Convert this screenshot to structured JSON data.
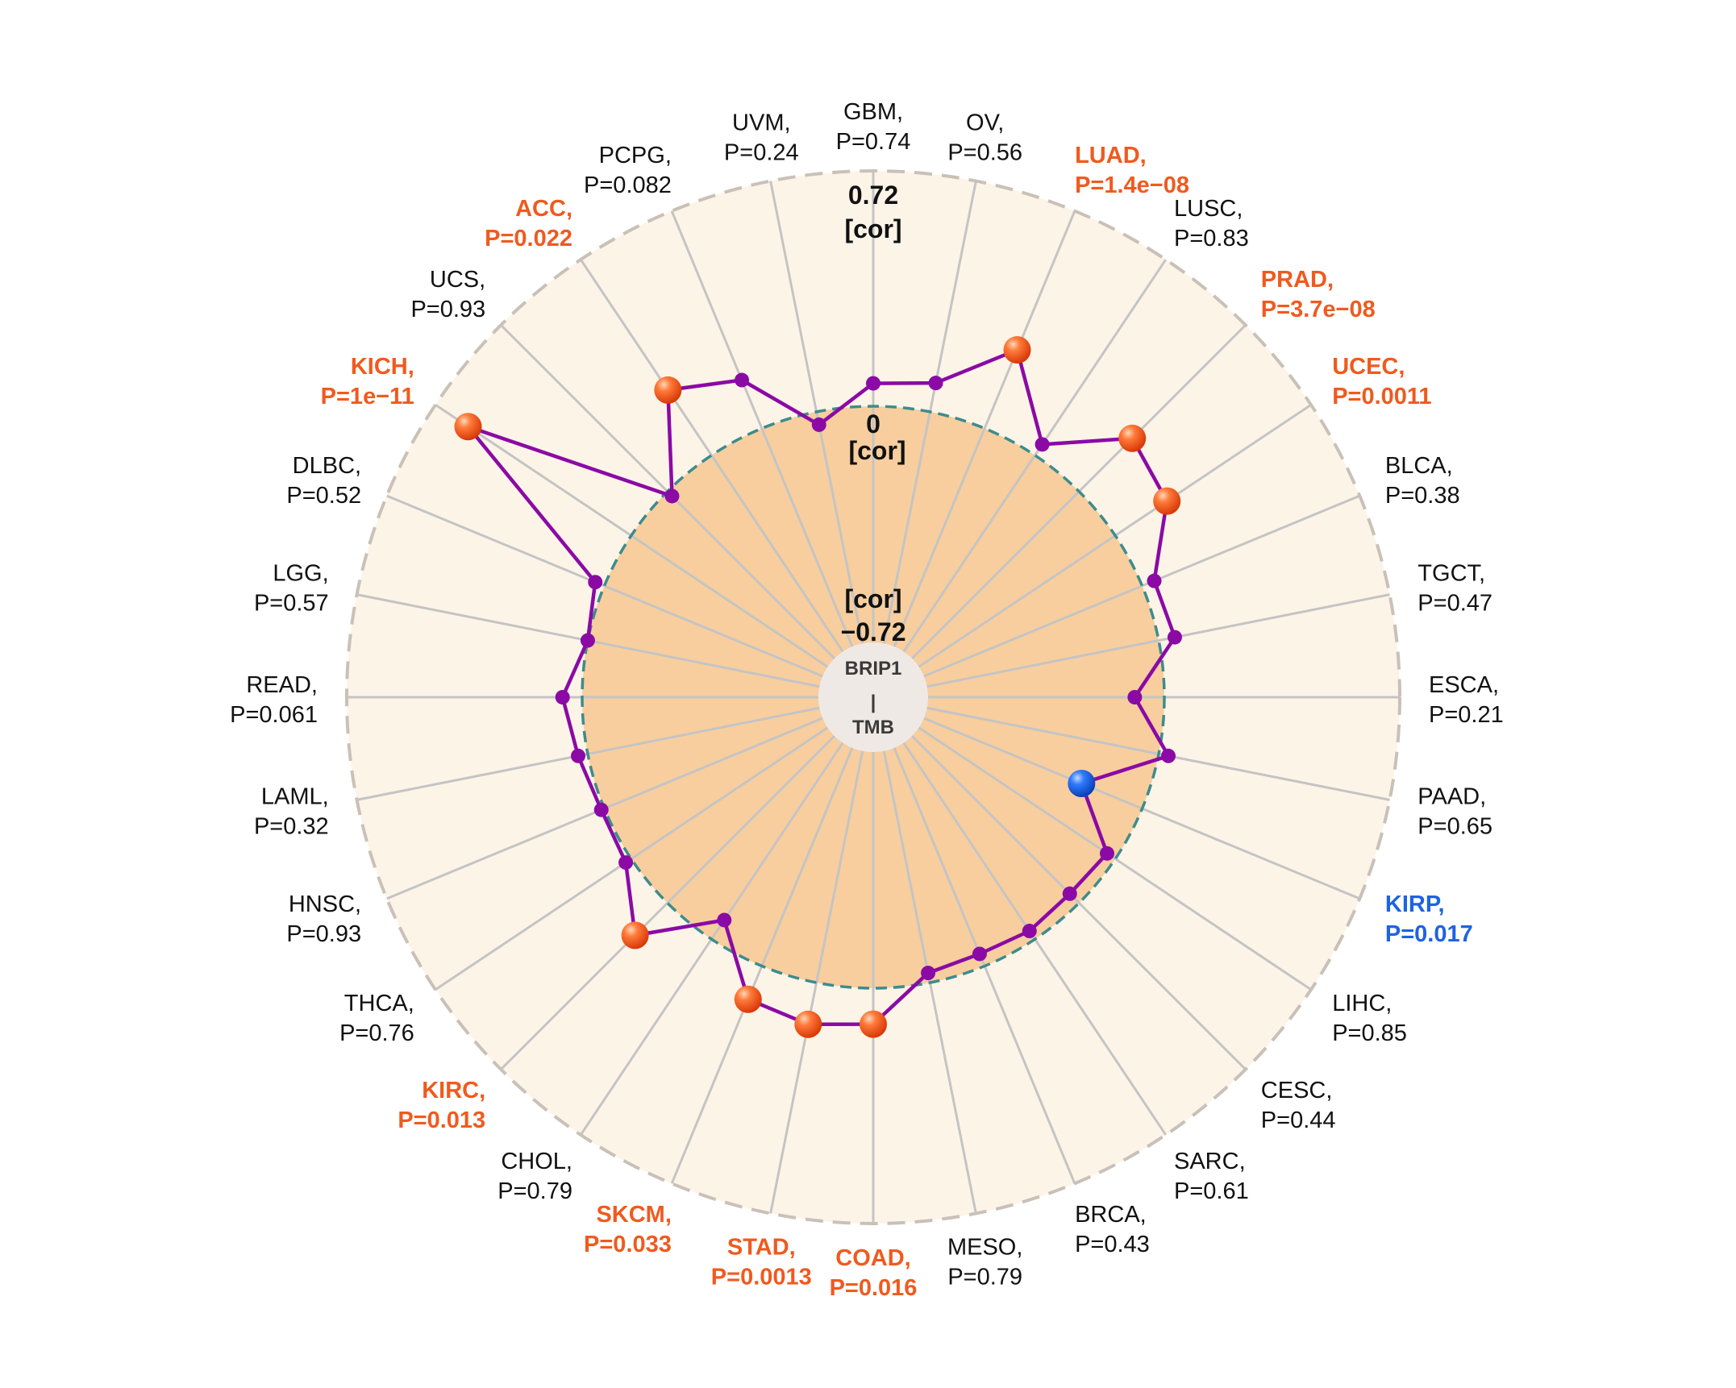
{
  "chart_data": {
    "type": "radar",
    "center": {
      "top": "BRIP1",
      "separator": "|",
      "bottom": "TMB"
    },
    "scale": {
      "min": -0.72,
      "zero": 0,
      "max": 0.72,
      "max_label_value": "0.72",
      "max_label_unit": "[cor]",
      "zero_label_value": "0",
      "zero_label_unit": "[cor]",
      "min_label_value": "−0.72",
      "min_label_unit": "[cor]"
    },
    "colors": {
      "positive_significant": "#F05A1E",
      "negative_significant": "#1E63E0",
      "not_significant": "#111111",
      "line": "#8B0AA5",
      "point": "#8B0AA5",
      "inner_fill": "#F8CE9E",
      "outer_fill": "#FDF4E8",
      "spoke": "#C4C4C4",
      "outer_ring": "#C9C1B8",
      "zero_ring": "#3D8C8C",
      "center_fill": "#EFE9E6"
    },
    "categories": [
      {
        "name": "GBM,",
        "p": "P=0.74",
        "cor": 0.07,
        "sig": "none"
      },
      {
        "name": "OV,",
        "p": "P=0.56",
        "cor": 0.09,
        "sig": "none"
      },
      {
        "name": "LUAD,",
        "p": "P=1.4e−08",
        "cor": 0.26,
        "sig": "pos"
      },
      {
        "name": "LUSC,",
        "p": "P=0.83",
        "cor": 0.04,
        "sig": "none"
      },
      {
        "name": "PRAD,",
        "p": "P=3.7e−08",
        "cor": 0.23,
        "sig": "pos"
      },
      {
        "name": "UCEC,",
        "p": "P=0.0011",
        "cor": 0.19,
        "sig": "pos"
      },
      {
        "name": "BLCA,",
        "p": "P=0.38",
        "cor": 0.04,
        "sig": "none"
      },
      {
        "name": "TGCT,",
        "p": "P=0.47",
        "cor": 0.05,
        "sig": "none"
      },
      {
        "name": "ESCA,",
        "p": "P=0.21",
        "cor": -0.09,
        "sig": "none"
      },
      {
        "name": "PAAD,",
        "p": "P=0.65",
        "cor": 0.03,
        "sig": "none"
      },
      {
        "name": "KIRP,",
        "p": "P=0.017",
        "cor": -0.2,
        "sig": "neg"
      },
      {
        "name": "LIHC,",
        "p": "P=0.85",
        "cor": -0.03,
        "sig": "none"
      },
      {
        "name": "CESC,",
        "p": "P=0.44",
        "cor": -0.04,
        "sig": "none"
      },
      {
        "name": "SARC,",
        "p": "P=0.61",
        "cor": -0.03,
        "sig": "none"
      },
      {
        "name": "BRCA,",
        "p": "P=0.43",
        "cor": -0.04,
        "sig": "none"
      },
      {
        "name": "MESO,",
        "p": "P=0.79",
        "cor": -0.03,
        "sig": "none"
      },
      {
        "name": "COAD,",
        "p": "P=0.016",
        "cor": 0.11,
        "sig": "pos"
      },
      {
        "name": "STAD,",
        "p": "P=0.0013",
        "cor": 0.13,
        "sig": "pos"
      },
      {
        "name": "SKCM,",
        "p": "P=0.033",
        "cor": 0.11,
        "sig": "pos"
      },
      {
        "name": "CHOL,",
        "p": "P=0.79",
        "cor": -0.07,
        "sig": "none"
      },
      {
        "name": "KIRC,",
        "p": "P=0.013",
        "cor": 0.14,
        "sig": "pos"
      },
      {
        "name": "THCA,",
        "p": "P=0.76",
        "cor": 0.02,
        "sig": "none"
      },
      {
        "name": "HNSC,",
        "p": "P=0.93",
        "cor": 0.01,
        "sig": "none"
      },
      {
        "name": "LAML,",
        "p": "P=0.32",
        "cor": 0.03,
        "sig": "none"
      },
      {
        "name": "READ,",
        "p": "P=0.061",
        "cor": 0.06,
        "sig": "none"
      },
      {
        "name": "LGG,",
        "p": "P=0.57",
        "cor": 0.0,
        "sig": "none"
      },
      {
        "name": "DLBC,",
        "p": "P=0.52",
        "cor": 0.03,
        "sig": "none"
      },
      {
        "name": "KICH,",
        "p": "P=1e−11",
        "cor": 0.6,
        "sig": "pos"
      },
      {
        "name": "UCS,",
        "p": "P=0.93",
        "cor": -0.02,
        "sig": "none"
      },
      {
        "name": "ACC,",
        "p": "P=0.022",
        "cor": 0.24,
        "sig": "pos"
      },
      {
        "name": "PCPG,",
        "p": "P=0.082",
        "cor": 0.16,
        "sig": "none"
      },
      {
        "name": "UVM,",
        "p": "P=0.24",
        "cor": -0.04,
        "sig": "none"
      }
    ]
  }
}
